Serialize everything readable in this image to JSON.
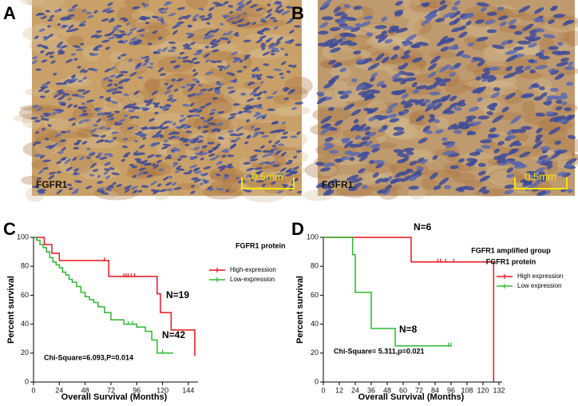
{
  "images": [
    {
      "panel": "A",
      "stain_label": "FGFR1",
      "scale_bar": "0.5mm"
    },
    {
      "panel": "B",
      "stain_label": "FGFR1",
      "scale_bar": "0.5mm"
    }
  ],
  "chart_data": [
    {
      "type": "step",
      "panel": "C",
      "y_label": "Percent survival",
      "x_label": "Overall Survival (Months)",
      "xlim": [
        0,
        150
      ],
      "xticks": [
        0,
        24,
        48,
        72,
        96,
        120,
        144
      ],
      "ylim": [
        0,
        100
      ],
      "yticks": [
        0,
        20,
        40,
        60,
        80,
        100
      ],
      "legend_title": "FGFR1 protein",
      "series": [
        {
          "name": "High-expression",
          "color": "#e8141c",
          "x": [
            0,
            10,
            17,
            24,
            70,
            115,
            118,
            128,
            150
          ],
          "values": [
            100,
            95,
            89,
            84,
            73,
            61,
            48,
            36,
            18
          ],
          "censored": [
            66,
            84,
            86,
            88,
            91,
            94
          ]
        },
        {
          "name": "Low-expression",
          "color": "#2db82d",
          "x": [
            0,
            3,
            6,
            9,
            12,
            15,
            18,
            21,
            24,
            27,
            30,
            33,
            36,
            40,
            44,
            48,
            52,
            56,
            60,
            66,
            72,
            84,
            96,
            104,
            110,
            115,
            130
          ],
          "values": [
            100,
            98,
            95,
            93,
            90,
            86,
            83,
            81,
            79,
            76,
            74,
            71,
            69,
            66,
            62,
            59,
            57,
            55,
            52,
            48,
            43,
            40,
            38,
            35,
            29,
            20,
            20
          ],
          "censored": [
            88,
            92,
            96,
            120
          ]
        }
      ],
      "annotations": [
        "N=19",
        "N=42",
        "Chi-Square=6.093,P=0.014"
      ]
    },
    {
      "type": "step",
      "panel": "D",
      "y_label": "Percent survival",
      "x_label": "Overall Survival (Months)",
      "xlim": [
        0,
        132
      ],
      "xticks": [
        0,
        12,
        24,
        36,
        48,
        60,
        72,
        84,
        96,
        108,
        120,
        132
      ],
      "ylim": [
        0,
        100
      ],
      "yticks": [
        0,
        20,
        40,
        60,
        80,
        100
      ],
      "legend_title": [
        "FGFR1 amplified group",
        "FGFR1 protein"
      ],
      "series": [
        {
          "name": "High expression",
          "color": "#e8141c",
          "x": [
            0,
            66,
            128
          ],
          "values": [
            100,
            83,
            0
          ],
          "censored": [
            86,
            88,
            92,
            98
          ]
        },
        {
          "name": "Low expression",
          "color": "#2db82d",
          "x": [
            0,
            22,
            24,
            36,
            54,
            96
          ],
          "values": [
            100,
            88,
            62,
            37,
            25,
            25
          ],
          "censored": [
            94,
            96
          ]
        }
      ],
      "annotations": [
        "N=6",
        "N=8",
        "Chi-Square= 5.311,p=0.021"
      ]
    }
  ]
}
